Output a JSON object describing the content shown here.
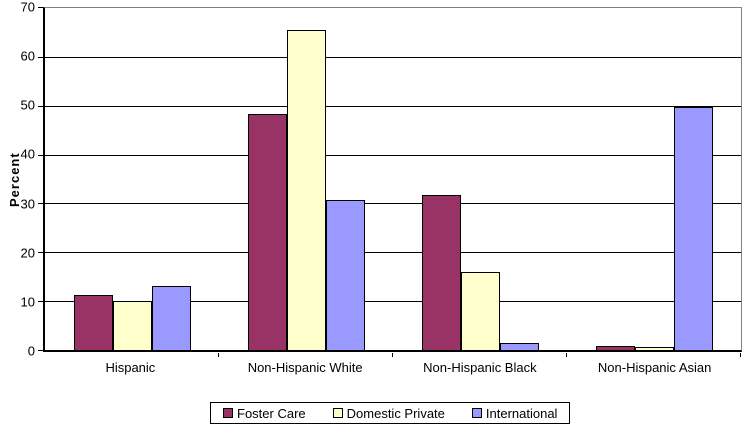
{
  "chart_data": {
    "type": "bar",
    "title": "",
    "xlabel": "",
    "ylabel": "Percent",
    "ylim": [
      0,
      70
    ],
    "yticks": [
      0,
      10,
      20,
      30,
      40,
      50,
      60,
      70
    ],
    "grid": "horizontal",
    "legend_position": "bottom-center",
    "categories": [
      "Hispanic",
      "Non-Hispanic White",
      "Non-Hispanic Black",
      "Non-Hispanic Asian"
    ],
    "series": [
      {
        "name": "Foster Care",
        "color": "#993366",
        "values": [
          11.3,
          48.4,
          31.8,
          0.9
        ]
      },
      {
        "name": "Domestic Private",
        "color": "#FFFFCC",
        "values": [
          10.0,
          65.6,
          15.9,
          0.7
        ]
      },
      {
        "name": "International",
        "color": "#9999FF",
        "values": [
          13.1,
          30.7,
          1.5,
          49.8
        ]
      }
    ]
  },
  "colors": {
    "background": "#FFFFFF",
    "gridline": "#000000",
    "plot_border": "#808080",
    "axis_line": "#000000",
    "text": "#000000"
  }
}
